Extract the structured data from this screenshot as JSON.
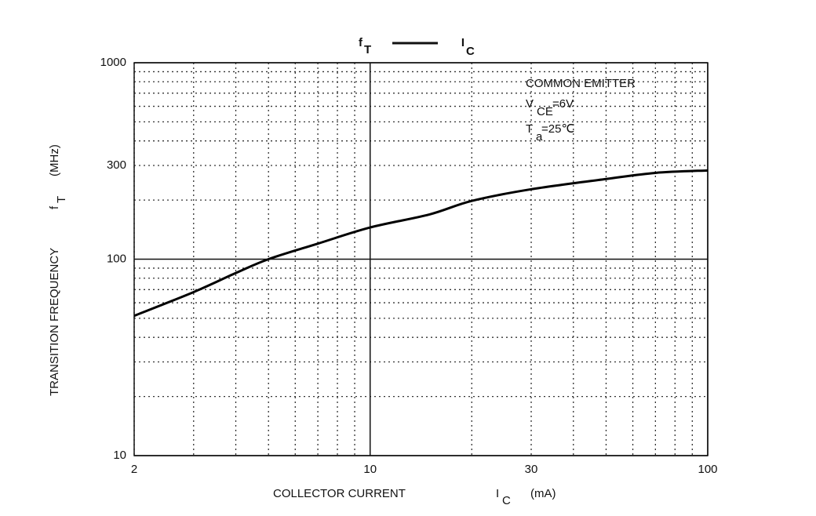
{
  "chart_data": {
    "type": "line",
    "title": {
      "y_symbol": "f",
      "y_sub": "T",
      "x_symbol": "I",
      "x_sub": "C"
    },
    "x_label": {
      "text": "COLLECTOR CURRENT",
      "symbol": "I",
      "sub": "C",
      "unit": "(mA)"
    },
    "y_label": {
      "text": "TRANSITION FREQUENCY",
      "symbol": "f",
      "sub": "T",
      "unit": "(MHz)"
    },
    "annotations": [
      {
        "text": "COMMON EMITTER"
      },
      {
        "text": "V",
        "sub": "CE",
        "rest": "=6V"
      },
      {
        "text": "T",
        "sub": "a",
        "rest": "=25℃"
      }
    ],
    "x": [
      2,
      3,
      4,
      5,
      7,
      10,
      15,
      20,
      30,
      50,
      70,
      100
    ],
    "values": [
      51.5,
      68,
      85,
      100,
      120,
      145,
      169,
      198,
      227,
      256,
      275,
      283
    ],
    "color": "#000000",
    "log_x": true,
    "log_y": true,
    "xlim": [
      2,
      100
    ],
    "ylim": [
      10,
      1000
    ],
    "xticks": [
      2,
      10,
      30,
      100
    ],
    "yticks": [
      10,
      100,
      300,
      1000
    ],
    "minor_xticks": [
      3,
      4,
      5,
      6,
      7,
      8,
      9,
      20,
      40,
      50,
      60,
      70,
      80,
      90
    ],
    "minor_yticks": [
      20,
      30,
      40,
      50,
      60,
      70,
      80,
      90,
      200,
      400,
      500,
      600,
      700,
      800,
      900
    ],
    "grid": true
  }
}
